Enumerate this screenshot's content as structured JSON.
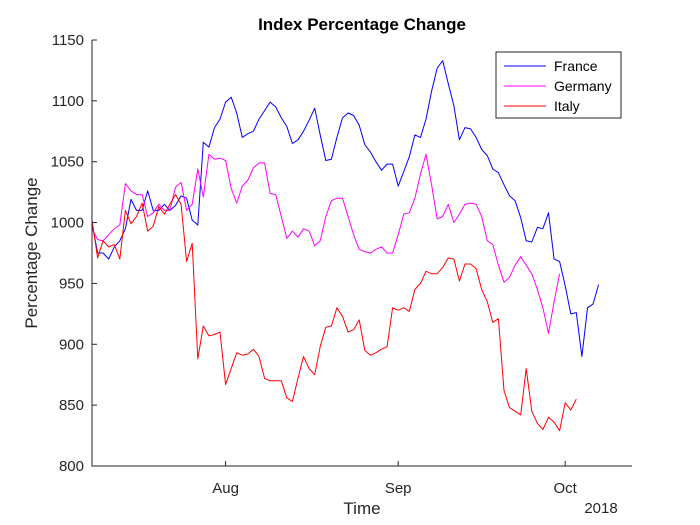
{
  "chart_data": {
    "type": "line",
    "title": "Index Percentage Change",
    "xlabel": "Time",
    "ylabel": "Percentage Change",
    "year_label": "2018",
    "ylim": [
      800,
      1150
    ],
    "xlim": [
      "2018-07-08",
      "2018-10-13"
    ],
    "y_ticks": [
      800,
      850,
      900,
      950,
      1000,
      1050,
      1100,
      1150
    ],
    "x_ticks": [
      {
        "date": "2018-08-01",
        "label": "Aug"
      },
      {
        "date": "2018-09-01",
        "label": "Sep"
      },
      {
        "date": "2018-10-01",
        "label": "Oct"
      }
    ],
    "grid": false,
    "legend_position": "top-right",
    "series": [
      {
        "name": "France",
        "color": "#0000ff",
        "points": [
          [
            "2018-07-08",
            1000
          ],
          [
            "2018-07-09",
            975
          ],
          [
            "2018-07-10",
            975
          ],
          [
            "2018-07-11",
            970
          ],
          [
            "2018-07-12",
            980
          ],
          [
            "2018-07-13",
            985
          ],
          [
            "2018-07-14",
            995
          ],
          [
            "2018-07-15",
            1019
          ],
          [
            "2018-07-16",
            1010
          ],
          [
            "2018-07-17",
            1010
          ],
          [
            "2018-07-18",
            1026
          ],
          [
            "2018-07-19",
            1010
          ],
          [
            "2018-07-20",
            1010
          ],
          [
            "2018-07-21",
            1015
          ],
          [
            "2018-07-22",
            1010
          ],
          [
            "2018-07-23",
            1014
          ],
          [
            "2018-07-24",
            1022
          ],
          [
            "2018-07-25",
            1020
          ],
          [
            "2018-07-26",
            1002
          ],
          [
            "2018-07-27",
            998
          ],
          [
            "2018-07-28",
            1066
          ],
          [
            "2018-07-29",
            1062
          ],
          [
            "2018-07-30",
            1078
          ],
          [
            "2018-07-31",
            1085
          ],
          [
            "2018-08-01",
            1099
          ],
          [
            "2018-08-02",
            1103
          ],
          [
            "2018-08-03",
            1090
          ],
          [
            "2018-08-04",
            1070
          ],
          [
            "2018-08-05",
            1073
          ],
          [
            "2018-08-06",
            1075
          ],
          [
            "2018-08-07",
            1085
          ],
          [
            "2018-08-08",
            1092
          ],
          [
            "2018-08-09",
            1099
          ],
          [
            "2018-08-10",
            1095
          ],
          [
            "2018-08-11",
            1086
          ],
          [
            "2018-08-12",
            1079
          ],
          [
            "2018-08-13",
            1065
          ],
          [
            "2018-08-14",
            1068
          ],
          [
            "2018-08-15",
            1075
          ],
          [
            "2018-08-16",
            1084
          ],
          [
            "2018-08-17",
            1094
          ],
          [
            "2018-08-18",
            1072
          ],
          [
            "2018-08-19",
            1051
          ],
          [
            "2018-08-20",
            1052
          ],
          [
            "2018-08-21",
            1070
          ],
          [
            "2018-08-22",
            1086
          ],
          [
            "2018-08-23",
            1090
          ],
          [
            "2018-08-24",
            1088
          ],
          [
            "2018-08-25",
            1080
          ],
          [
            "2018-08-26",
            1064
          ],
          [
            "2018-08-27",
            1058
          ],
          [
            "2018-08-28",
            1050
          ],
          [
            "2018-08-29",
            1043
          ],
          [
            "2018-08-30",
            1048
          ],
          [
            "2018-08-31",
            1048
          ],
          [
            "2018-09-01",
            1030
          ],
          [
            "2018-09-02",
            1042
          ],
          [
            "2018-09-03",
            1054
          ],
          [
            "2018-09-04",
            1072
          ],
          [
            "2018-09-05",
            1070
          ],
          [
            "2018-09-06",
            1085
          ],
          [
            "2018-09-07",
            1108
          ],
          [
            "2018-09-08",
            1127
          ],
          [
            "2018-09-09",
            1133
          ],
          [
            "2018-09-10",
            1114
          ],
          [
            "2018-09-11",
            1096
          ],
          [
            "2018-09-12",
            1068
          ],
          [
            "2018-09-13",
            1078
          ],
          [
            "2018-09-14",
            1077
          ],
          [
            "2018-09-15",
            1070
          ],
          [
            "2018-09-16",
            1060
          ],
          [
            "2018-09-17",
            1055
          ],
          [
            "2018-09-18",
            1044
          ],
          [
            "2018-09-19",
            1041
          ],
          [
            "2018-09-20",
            1031
          ],
          [
            "2018-09-21",
            1022
          ],
          [
            "2018-09-22",
            1018
          ],
          [
            "2018-09-23",
            1004
          ],
          [
            "2018-09-24",
            985
          ],
          [
            "2018-09-25",
            984
          ],
          [
            "2018-09-26",
            996
          ],
          [
            "2018-09-27",
            995
          ],
          [
            "2018-09-28",
            1008
          ],
          [
            "2018-09-29",
            970
          ],
          [
            "2018-09-30",
            968
          ],
          [
            "2018-10-01",
            948
          ],
          [
            "2018-10-02",
            925
          ],
          [
            "2018-10-03",
            926
          ],
          [
            "2018-10-04",
            890
          ],
          [
            "2018-10-05",
            930
          ],
          [
            "2018-10-06",
            933
          ],
          [
            "2018-10-07",
            949
          ]
        ]
      },
      {
        "name": "Germany",
        "color": "#ff00ff",
        "points": [
          [
            "2018-07-08",
            995
          ],
          [
            "2018-07-09",
            986
          ],
          [
            "2018-07-10",
            985
          ],
          [
            "2018-07-11",
            990
          ],
          [
            "2018-07-12",
            995
          ],
          [
            "2018-07-13",
            998
          ],
          [
            "2018-07-14",
            1032
          ],
          [
            "2018-07-15",
            1026
          ],
          [
            "2018-07-16",
            1023
          ],
          [
            "2018-07-17",
            1023
          ],
          [
            "2018-07-18",
            1005
          ],
          [
            "2018-07-19",
            1008
          ],
          [
            "2018-07-20",
            1015
          ],
          [
            "2018-07-21",
            1010
          ],
          [
            "2018-07-22",
            1010
          ],
          [
            "2018-07-23",
            1029
          ],
          [
            "2018-07-24",
            1033
          ],
          [
            "2018-07-25",
            1010
          ],
          [
            "2018-07-26",
            1015
          ],
          [
            "2018-07-27",
            1044
          ],
          [
            "2018-07-28",
            1021
          ],
          [
            "2018-07-29",
            1056
          ],
          [
            "2018-07-30",
            1052
          ],
          [
            "2018-07-31",
            1053
          ],
          [
            "2018-08-01",
            1051
          ],
          [
            "2018-08-02",
            1028
          ],
          [
            "2018-08-03",
            1016
          ],
          [
            "2018-08-04",
            1030
          ],
          [
            "2018-08-05",
            1035
          ],
          [
            "2018-08-06",
            1045
          ],
          [
            "2018-08-07",
            1049
          ],
          [
            "2018-08-08",
            1049
          ],
          [
            "2018-08-09",
            1024
          ],
          [
            "2018-08-10",
            1023
          ],
          [
            "2018-08-11",
            1005
          ],
          [
            "2018-08-12",
            987
          ],
          [
            "2018-08-13",
            993
          ],
          [
            "2018-08-14",
            988
          ],
          [
            "2018-08-15",
            995
          ],
          [
            "2018-08-16",
            993
          ],
          [
            "2018-08-17",
            981
          ],
          [
            "2018-08-18",
            985
          ],
          [
            "2018-08-19",
            1005
          ],
          [
            "2018-08-20",
            1018
          ],
          [
            "2018-08-21",
            1020
          ],
          [
            "2018-08-22",
            1020
          ],
          [
            "2018-08-23",
            1005
          ],
          [
            "2018-08-24",
            990
          ],
          [
            "2018-08-25",
            978
          ],
          [
            "2018-08-26",
            976
          ],
          [
            "2018-08-27",
            975
          ],
          [
            "2018-08-28",
            978
          ],
          [
            "2018-08-29",
            980
          ],
          [
            "2018-08-30",
            975
          ],
          [
            "2018-08-31",
            975
          ],
          [
            "2018-09-01",
            990
          ],
          [
            "2018-09-02",
            1007
          ],
          [
            "2018-09-03",
            1008
          ],
          [
            "2018-09-04",
            1020
          ],
          [
            "2018-09-05",
            1040
          ],
          [
            "2018-09-06",
            1056
          ],
          [
            "2018-09-07",
            1031
          ],
          [
            "2018-09-08",
            1003
          ],
          [
            "2018-09-09",
            1005
          ],
          [
            "2018-09-10",
            1015
          ],
          [
            "2018-09-11",
            1000
          ],
          [
            "2018-09-12",
            1007
          ],
          [
            "2018-09-13",
            1015
          ],
          [
            "2018-09-14",
            1016
          ],
          [
            "2018-09-15",
            1015
          ],
          [
            "2018-09-16",
            1005
          ],
          [
            "2018-09-17",
            985
          ],
          [
            "2018-09-18",
            982
          ],
          [
            "2018-09-19",
            965
          ],
          [
            "2018-09-20",
            951
          ],
          [
            "2018-09-21",
            955
          ],
          [
            "2018-09-22",
            965
          ],
          [
            "2018-09-23",
            972
          ],
          [
            "2018-09-24",
            965
          ],
          [
            "2018-09-25",
            958
          ],
          [
            "2018-09-26",
            945
          ],
          [
            "2018-09-27",
            930
          ],
          [
            "2018-09-28",
            909
          ],
          [
            "2018-09-29",
            935
          ],
          [
            "2018-09-30",
            958
          ]
        ]
      },
      {
        "name": "Italy",
        "color": "#ff0000",
        "points": [
          [
            "2018-07-08",
            1002
          ],
          [
            "2018-07-09",
            971
          ],
          [
            "2018-07-10",
            985
          ],
          [
            "2018-07-11",
            980
          ],
          [
            "2018-07-12",
            982
          ],
          [
            "2018-07-13",
            970
          ],
          [
            "2018-07-14",
            1010
          ],
          [
            "2018-07-15",
            999
          ],
          [
            "2018-07-16",
            1005
          ],
          [
            "2018-07-17",
            1016
          ],
          [
            "2018-07-18",
            993
          ],
          [
            "2018-07-19",
            997
          ],
          [
            "2018-07-20",
            1013
          ],
          [
            "2018-07-21",
            1007
          ],
          [
            "2018-07-22",
            1015
          ],
          [
            "2018-07-23",
            1023
          ],
          [
            "2018-07-24",
            1015
          ],
          [
            "2018-07-25",
            968
          ],
          [
            "2018-07-26",
            983
          ],
          [
            "2018-07-27",
            888
          ],
          [
            "2018-07-28",
            915
          ],
          [
            "2018-07-29",
            907
          ],
          [
            "2018-07-30",
            908
          ],
          [
            "2018-07-31",
            910
          ],
          [
            "2018-08-01",
            867
          ],
          [
            "2018-08-02",
            880
          ],
          [
            "2018-08-03",
            893
          ],
          [
            "2018-08-04",
            891
          ],
          [
            "2018-08-05",
            892
          ],
          [
            "2018-08-06",
            896
          ],
          [
            "2018-08-07",
            890
          ],
          [
            "2018-08-08",
            872
          ],
          [
            "2018-08-09",
            870
          ],
          [
            "2018-08-10",
            870
          ],
          [
            "2018-08-11",
            870
          ],
          [
            "2018-08-12",
            856
          ],
          [
            "2018-08-13",
            853
          ],
          [
            "2018-08-14",
            872
          ],
          [
            "2018-08-15",
            890
          ],
          [
            "2018-08-16",
            880
          ],
          [
            "2018-08-17",
            875
          ],
          [
            "2018-08-18",
            898
          ],
          [
            "2018-08-19",
            914
          ],
          [
            "2018-08-20",
            915
          ],
          [
            "2018-08-21",
            930
          ],
          [
            "2018-08-22",
            923
          ],
          [
            "2018-08-23",
            910
          ],
          [
            "2018-08-24",
            912
          ],
          [
            "2018-08-25",
            920
          ],
          [
            "2018-08-26",
            895
          ],
          [
            "2018-08-27",
            891
          ],
          [
            "2018-08-28",
            893
          ],
          [
            "2018-08-29",
            896
          ],
          [
            "2018-08-30",
            898
          ],
          [
            "2018-08-31",
            930
          ],
          [
            "2018-09-01",
            928
          ],
          [
            "2018-09-02",
            930
          ],
          [
            "2018-09-03",
            927
          ],
          [
            "2018-09-04",
            945
          ],
          [
            "2018-09-05",
            950
          ],
          [
            "2018-09-06",
            960
          ],
          [
            "2018-09-07",
            958
          ],
          [
            "2018-09-08",
            958
          ],
          [
            "2018-09-09",
            963
          ],
          [
            "2018-09-10",
            971
          ],
          [
            "2018-09-11",
            970
          ],
          [
            "2018-09-12",
            952
          ],
          [
            "2018-09-13",
            966
          ],
          [
            "2018-09-14",
            966
          ],
          [
            "2018-09-15",
            962
          ],
          [
            "2018-09-16",
            945
          ],
          [
            "2018-09-17",
            935
          ],
          [
            "2018-09-18",
            918
          ],
          [
            "2018-09-19",
            921
          ],
          [
            "2018-09-20",
            862
          ],
          [
            "2018-09-21",
            848
          ],
          [
            "2018-09-22",
            845
          ],
          [
            "2018-09-23",
            842
          ],
          [
            "2018-09-24",
            880
          ],
          [
            "2018-09-25",
            845
          ],
          [
            "2018-09-26",
            835
          ],
          [
            "2018-09-27",
            830
          ],
          [
            "2018-09-28",
            840
          ],
          [
            "2018-09-29",
            836
          ],
          [
            "2018-09-30",
            829
          ],
          [
            "2018-10-01",
            852
          ],
          [
            "2018-10-02",
            846
          ],
          [
            "2018-10-03",
            855
          ]
        ]
      }
    ]
  }
}
